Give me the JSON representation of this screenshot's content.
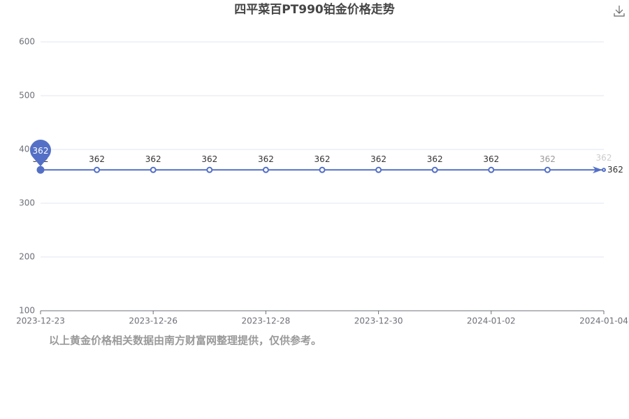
{
  "chart_data": {
    "type": "line",
    "title": "四平菜百PT990铂金价格走势",
    "note": "以上黄金价格相关数据由南方财富网整理提供，仅供参考。",
    "categories": [
      "2023-12-23",
      null,
      "2023-12-26",
      null,
      "2023-12-28",
      null,
      "2023-12-30",
      null,
      "2024-01-02",
      null,
      "2024-01-04"
    ],
    "series": [
      {
        "name": "PT990",
        "color": "#5470c6",
        "values": [
          362,
          362,
          362,
          362,
          362,
          362,
          362,
          362,
          362,
          362,
          362
        ]
      }
    ],
    "ylim": [
      100,
      600
    ],
    "yticks": [
      100,
      200,
      300,
      400,
      500,
      600
    ],
    "grid": true
  }
}
